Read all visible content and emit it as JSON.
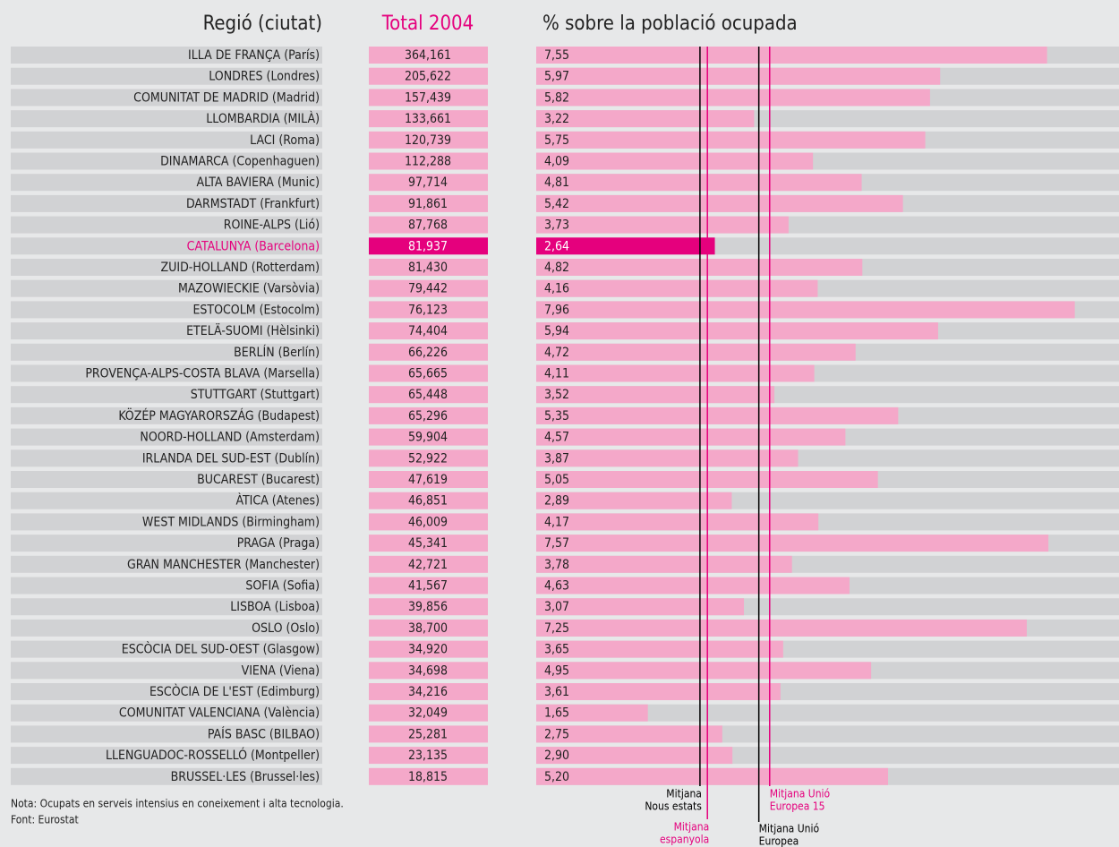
{
  "chart_data": {
    "type": "bar",
    "headers": [
      "Regió (ciutat)",
      "Total 2004",
      "% sobre la població ocupada"
    ],
    "categories": [
      "ILLA DE FRANÇA (París)",
      "LONDRES (Londres)",
      "COMUNITAT DE MADRID (Madrid)",
      "LLOMBARDIA (MILÀ)",
      "LACI (Roma)",
      "DINAMARCA (Copenhaguen)",
      "ALTA BAVIERA (Munic)",
      "DARMSTADT (Frankfurt)",
      "ROINE-ALPS (Lió)",
      "CATALUNYA (Barcelona)",
      "ZUID-HOLLAND (Rotterdam)",
      "MAZOWIECKIE (Varsòvia)",
      "ESTOCOLM (Estocolm)",
      "ETELÄ-SUOMI (Hèlsinki)",
      "BERLÍN (Berlín)",
      "PROVENÇA-ALPS-COSTA BLAVA (Marsella)",
      "STUTTGART (Stuttgart)",
      "KÖZÉP MAGYARORSZÁG (Budapest)",
      "NOORD-HOLLAND (Amsterdam)",
      "IRLANDA DEL SUD-EST (Dublín)",
      "BUCAREST (Bucarest)",
      "ÀTICA (Atenes)",
      "WEST MIDLANDS (Birmingham)",
      "PRAGA (Praga)",
      "GRAN MANCHESTER (Manchester)",
      "SOFIA (Sofia)",
      "LISBOA (Lisboa)",
      "OSLO (Oslo)",
      "ESCÒCIA DEL SUD-OEST (Glasgow)",
      "VIENA (Viena)",
      "ESCÒCIA DE L'EST (Edimburg)",
      "COMUNITAT VALENCIANA (València)",
      "PAÍS BASC (BILBAO)",
      "LLENGUADOC-ROSSELLÓ (Montpeller)",
      "BRUSSEL·LES (Brussel·les)"
    ],
    "totals": [
      "364,161",
      "205,622",
      "157,439",
      "133,661",
      "120,739",
      "112,288",
      "97,714",
      "91,861",
      "87,768",
      "81,937",
      "81,430",
      "79,442",
      "76,123",
      "74,404",
      "66,226",
      "65,665",
      "65,448",
      "65,296",
      "59,904",
      "52,922",
      "47,619",
      "46,851",
      "46,009",
      "45,341",
      "42,721",
      "41,567",
      "39,856",
      "38,700",
      "34,920",
      "34,698",
      "34,216",
      "32,049",
      "25,281",
      "23,135",
      "18,815"
    ],
    "values": [
      7.55,
      5.97,
      5.82,
      3.22,
      5.75,
      4.09,
      4.81,
      5.42,
      3.73,
      2.64,
      4.82,
      4.16,
      7.96,
      5.94,
      4.72,
      4.11,
      3.52,
      5.35,
      4.57,
      3.87,
      5.05,
      2.89,
      4.17,
      7.57,
      3.78,
      4.63,
      3.07,
      7.25,
      3.65,
      4.95,
      3.61,
      1.65,
      2.75,
      2.9,
      5.2
    ],
    "value_labels": [
      "7,55",
      "5,97",
      "5,82",
      "3,22",
      "5,75",
      "4,09",
      "4,81",
      "5,42",
      "3,73",
      "2,64",
      "4,82",
      "4,16",
      "7,96",
      "5,94",
      "4,72",
      "4,11",
      "3,52",
      "5,35",
      "4,57",
      "3,87",
      "5,05",
      "2,89",
      "4,17",
      "7,57",
      "3,78",
      "4,63",
      "3,07",
      "7,25",
      "3,65",
      "4,95",
      "3,61",
      "1,65",
      "2,75",
      "2,90",
      "5,20"
    ],
    "color": "#f4a8c9",
    "highlight": 9,
    "highlight_color": "#e5007d",
    "xlim": [
      0,
      8.6
    ],
    "reference_lines": [
      {
        "label": [
          "Mitjana",
          "Nous estats"
        ],
        "value": 2.42,
        "color": "#000000"
      },
      {
        "label": [
          "Mitjana",
          "espanyola"
        ],
        "value": 2.53,
        "color": "#e5007d"
      },
      {
        "label": [
          "Mitjana Unió",
          "Europea"
        ],
        "value": 3.29,
        "color": "#000000"
      },
      {
        "label": [
          "Mitjana Unió",
          "Europea 15"
        ],
        "value": 3.45,
        "color": "#e5007d"
      }
    ],
    "notes": [
      "Nota: Ocupats en serveis intensius en coneixement i alta tecnologia.",
      "Font: Eurostat"
    ]
  }
}
